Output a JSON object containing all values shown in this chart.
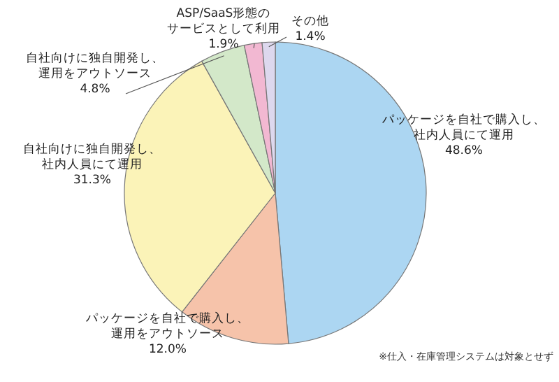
{
  "chart_data": {
    "type": "pie",
    "categories": [
      "パッケージを自社で購入し、社内人員にて運用",
      "パッケージを自社で購入し、運用をアウトソース",
      "自社向けに独自開発し、社内人員にて運用",
      "自社向けに独自開発し、運用をアウトソース",
      "ASP/SaaS形態のサービスとして利用",
      "その他"
    ],
    "values": [
      48.6,
      12.0,
      31.3,
      4.8,
      1.9,
      1.4
    ],
    "value_labels": [
      "48.6%",
      "12.0%",
      "31.3%",
      "4.8%",
      "1.9%",
      "1.4%"
    ],
    "colors": [
      "#acd6f2",
      "#f6c3aa",
      "#fbf3b8",
      "#d3e8c9",
      "#f2b8d2",
      "#ddd8ee"
    ],
    "annotations": [
      "※仕入・在庫管理システムは対象とせず"
    ]
  }
}
